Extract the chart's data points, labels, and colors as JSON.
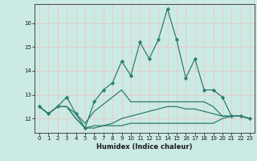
{
  "xlabel": "Humidex (Indice chaleur)",
  "background_color": "#cceae4",
  "grid_color": "#e8c8c8",
  "line_color": "#2e7d6e",
  "x": [
    0,
    1,
    2,
    3,
    4,
    5,
    6,
    7,
    8,
    9,
    10,
    11,
    12,
    13,
    14,
    15,
    16,
    17,
    18,
    19,
    20,
    21,
    22,
    23
  ],
  "series": [
    [
      12.5,
      12.2,
      12.5,
      12.9,
      12.2,
      11.6,
      12.7,
      13.2,
      13.5,
      14.4,
      13.8,
      15.2,
      14.5,
      15.3,
      16.6,
      15.3,
      13.7,
      14.5,
      13.2,
      13.2,
      12.9,
      12.1,
      12.1,
      12.0
    ],
    [
      12.5,
      12.2,
      12.5,
      12.5,
      12.2,
      11.8,
      12.3,
      12.6,
      12.9,
      13.2,
      12.7,
      12.7,
      12.7,
      12.7,
      12.7,
      12.7,
      12.7,
      12.7,
      12.7,
      12.5,
      12.1,
      12.1,
      12.1,
      12.0
    ],
    [
      12.5,
      12.2,
      12.5,
      12.5,
      12.0,
      11.6,
      11.7,
      11.7,
      11.7,
      11.7,
      11.8,
      11.8,
      11.8,
      11.8,
      11.8,
      11.8,
      11.8,
      11.8,
      11.8,
      11.8,
      12.0,
      12.1,
      12.1,
      12.0
    ],
    [
      12.5,
      12.2,
      12.5,
      12.5,
      12.0,
      11.6,
      11.6,
      11.7,
      11.8,
      12.0,
      12.1,
      12.2,
      12.3,
      12.4,
      12.5,
      12.5,
      12.4,
      12.4,
      12.3,
      12.2,
      12.1,
      12.1,
      12.1,
      12.0
    ]
  ],
  "ylim": [
    11.4,
    16.8
  ],
  "yticks": [
    12,
    13,
    14,
    15,
    16
  ],
  "xticks": [
    0,
    1,
    2,
    3,
    4,
    5,
    6,
    7,
    8,
    9,
    10,
    11,
    12,
    13,
    14,
    15,
    16,
    17,
    18,
    19,
    20,
    21,
    22,
    23
  ],
  "marker": "D",
  "markersize": 2.2,
  "linewidth": 0.9,
  "tick_fontsize": 5.0,
  "xlabel_fontsize": 6.0
}
